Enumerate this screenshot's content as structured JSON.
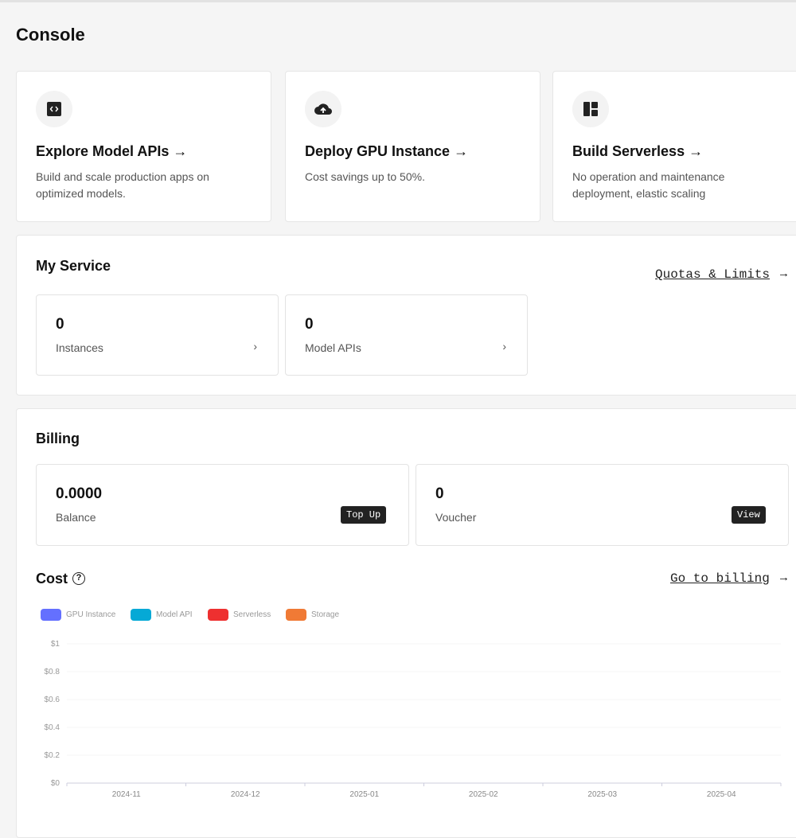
{
  "page_title": "Console",
  "quick_cards": [
    {
      "icon": "code-icon",
      "title": "Explore Model APIs",
      "arrow": "→",
      "desc": "Build and scale production apps on optimized models."
    },
    {
      "icon": "cloud-upload-icon",
      "title": "Deploy GPU Instance",
      "arrow": "→",
      "desc": "Cost savings up to 50%."
    },
    {
      "icon": "layout-icon",
      "title": "Build Serverless",
      "arrow": "→",
      "desc": "No operation and maintenance deployment, elastic scaling"
    }
  ],
  "my_service": {
    "title": "My Service",
    "quotas_link": "Quotas & Limits",
    "arrow": "→",
    "stats": [
      {
        "value": "0",
        "label": "Instances",
        "chevron": "›"
      },
      {
        "value": "0",
        "label": "Model APIs",
        "chevron": "›"
      }
    ]
  },
  "billing": {
    "title": "Billing",
    "balance": {
      "value": "0.0000",
      "label": "Balance",
      "button": "Top Up"
    },
    "voucher": {
      "value": "0",
      "label": "Voucher",
      "button": "View"
    },
    "cost_title": "Cost",
    "help_icon": "?",
    "billing_link": "Go to billing",
    "arrow": "→"
  },
  "chart_data": {
    "type": "bar",
    "stacked": true,
    "categories": [
      "2024-11",
      "2024-12",
      "2025-01",
      "2025-02",
      "2025-03",
      "2025-04"
    ],
    "series": [
      {
        "name": "GPU Instance",
        "color": "#6470ff",
        "values": [
          0,
          0,
          0,
          0,
          0,
          0
        ]
      },
      {
        "name": "Model API",
        "color": "#05a9d6",
        "values": [
          0,
          0,
          0,
          0,
          0,
          0
        ]
      },
      {
        "name": "Serverless",
        "color": "#ee3030",
        "values": [
          0,
          0,
          0,
          0,
          0,
          0
        ]
      },
      {
        "name": "Storage",
        "color": "#f07a35",
        "values": [
          0,
          0,
          0,
          0,
          0,
          0
        ]
      }
    ],
    "ylim": [
      0,
      1
    ],
    "yticks": [
      "$0",
      "$0.2",
      "$0.4",
      "$0.6",
      "$0.8",
      "$1"
    ],
    "legend": "top-left",
    "grid": true
  }
}
